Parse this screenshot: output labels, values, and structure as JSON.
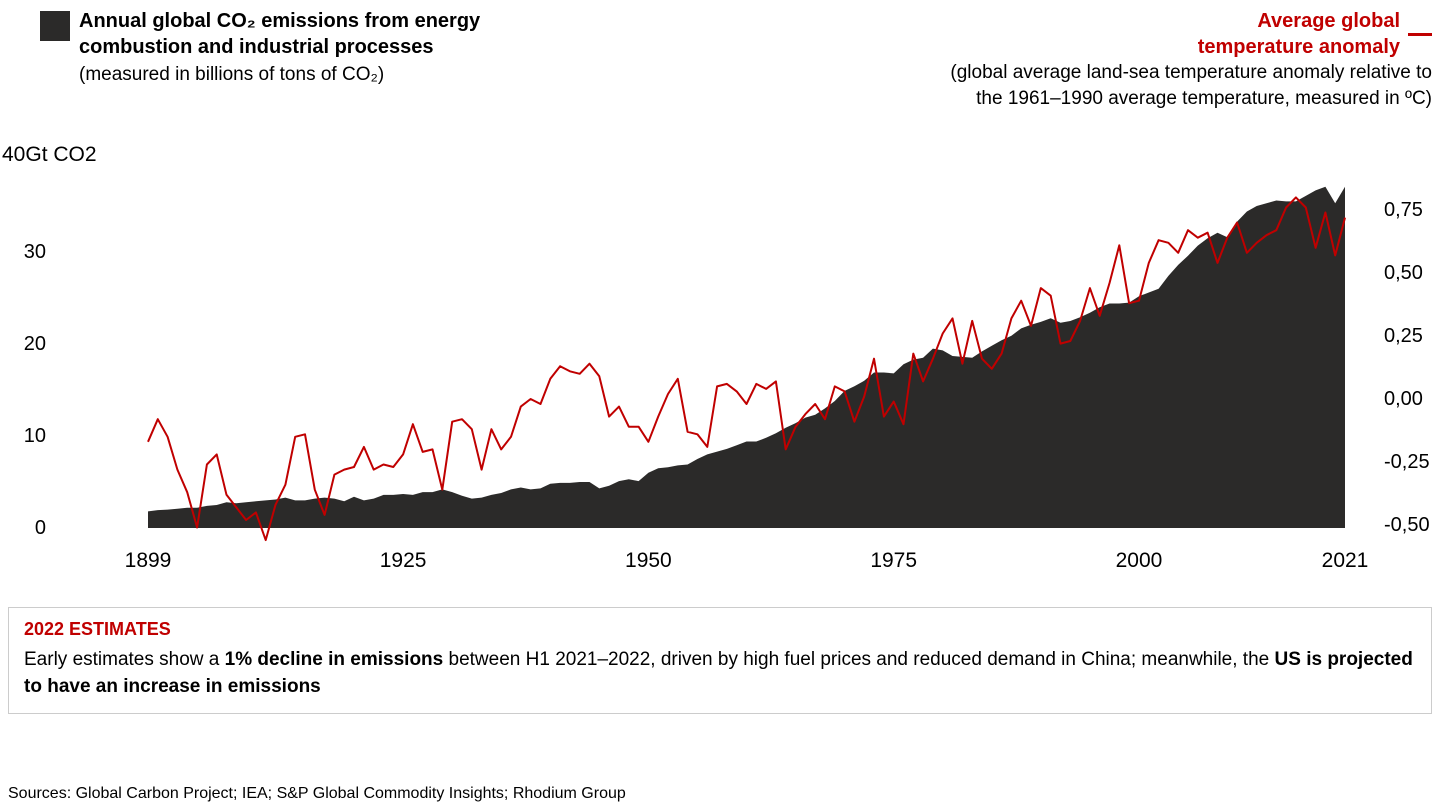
{
  "colors": {
    "emissions": "#2b2a29",
    "temperature": "#c00000",
    "callout_border": "#cccccc",
    "background": "#ffffff"
  },
  "legend_left": {
    "title_line1": "Annual global CO₂ emissions from energy",
    "title_line2": "combustion and industrial processes",
    "subtitle": "(measured in billions of tons of CO₂)"
  },
  "legend_right": {
    "title_line1": "Average global",
    "title_line2": "temperature anomaly",
    "subtitle_line1": "(global average land-sea temperature anomaly relative to",
    "subtitle_line2": "the 1961–1990 average temperature, measured in ºC)"
  },
  "chart_data": {
    "type": "area+line",
    "title": "Annual global CO₂ emissions from energy combustion and industrial processes vs. average global temperature anomaly, 1899–2021",
    "x": [
      1899,
      1900,
      1901,
      1902,
      1903,
      1904,
      1905,
      1906,
      1907,
      1908,
      1909,
      1910,
      1911,
      1912,
      1913,
      1914,
      1915,
      1916,
      1917,
      1918,
      1919,
      1920,
      1921,
      1922,
      1923,
      1924,
      1925,
      1926,
      1927,
      1928,
      1929,
      1930,
      1931,
      1932,
      1933,
      1934,
      1935,
      1936,
      1937,
      1938,
      1939,
      1940,
      1941,
      1942,
      1943,
      1944,
      1945,
      1946,
      1947,
      1948,
      1949,
      1950,
      1951,
      1952,
      1953,
      1954,
      1955,
      1956,
      1957,
      1958,
      1959,
      1960,
      1961,
      1962,
      1963,
      1964,
      1965,
      1966,
      1967,
      1968,
      1969,
      1970,
      1971,
      1972,
      1973,
      1974,
      1975,
      1976,
      1977,
      1978,
      1979,
      1980,
      1981,
      1982,
      1983,
      1984,
      1985,
      1986,
      1987,
      1988,
      1989,
      1990,
      1991,
      1992,
      1993,
      1994,
      1995,
      1996,
      1997,
      1998,
      1999,
      2000,
      2001,
      2002,
      2003,
      2004,
      2005,
      2006,
      2007,
      2008,
      2009,
      2010,
      2011,
      2012,
      2013,
      2014,
      2015,
      2016,
      2017,
      2018,
      2019,
      2020,
      2021
    ],
    "series": [
      {
        "name": "Annual global CO₂ emissions from energy combustion and industrial processes",
        "type": "area",
        "axis": "left",
        "unit": "Gt CO₂",
        "values": [
          1.8,
          1.95,
          2.0,
          2.1,
          2.2,
          2.2,
          2.4,
          2.5,
          2.8,
          2.7,
          2.8,
          2.9,
          3.0,
          3.1,
          3.3,
          3.0,
          3.0,
          3.2,
          3.3,
          3.2,
          2.9,
          3.4,
          3.0,
          3.2,
          3.6,
          3.6,
          3.7,
          3.6,
          3.9,
          3.9,
          4.2,
          3.9,
          3.5,
          3.2,
          3.3,
          3.6,
          3.8,
          4.2,
          4.4,
          4.2,
          4.3,
          4.8,
          4.9,
          4.9,
          5.0,
          5.0,
          4.3,
          4.6,
          5.1,
          5.3,
          5.1,
          6.0,
          6.5,
          6.6,
          6.8,
          6.9,
          7.5,
          8.0,
          8.3,
          8.6,
          9.0,
          9.4,
          9.4,
          9.8,
          10.3,
          10.9,
          11.4,
          12.0,
          12.3,
          13.0,
          13.8,
          14.9,
          15.4,
          16.0,
          16.9,
          16.9,
          16.8,
          17.8,
          18.3,
          18.5,
          19.5,
          19.3,
          18.7,
          18.6,
          18.5,
          19.2,
          19.8,
          20.4,
          20.9,
          21.7,
          22.1,
          22.4,
          22.8,
          22.3,
          22.5,
          22.9,
          23.4,
          24.0,
          24.4,
          24.4,
          24.5,
          25.2,
          25.6,
          26.0,
          27.4,
          28.6,
          29.6,
          30.7,
          31.5,
          32.1,
          31.6,
          33.3,
          34.4,
          35.0,
          35.3,
          35.6,
          35.5,
          35.5,
          36.1,
          36.7,
          37.1,
          35.3,
          37.1
        ]
      },
      {
        "name": "Average global temperature anomaly",
        "type": "line",
        "axis": "right",
        "unit": "ºC",
        "values": [
          -0.17,
          -0.08,
          -0.15,
          -0.28,
          -0.37,
          -0.51,
          -0.26,
          -0.22,
          -0.38,
          -0.43,
          -0.48,
          -0.45,
          -0.56,
          -0.42,
          -0.34,
          -0.15,
          -0.14,
          -0.36,
          -0.46,
          -0.3,
          -0.28,
          -0.27,
          -0.19,
          -0.28,
          -0.26,
          -0.27,
          -0.22,
          -0.1,
          -0.21,
          -0.2,
          -0.36,
          -0.09,
          -0.08,
          -0.12,
          -0.28,
          -0.12,
          -0.2,
          -0.15,
          -0.03,
          0.0,
          -0.02,
          0.08,
          0.13,
          0.11,
          0.1,
          0.14,
          0.09,
          -0.07,
          -0.03,
          -0.11,
          -0.11,
          -0.17,
          -0.07,
          0.02,
          0.08,
          -0.13,
          -0.14,
          -0.19,
          0.05,
          0.06,
          0.03,
          -0.02,
          0.06,
          0.04,
          0.07,
          -0.2,
          -0.11,
          -0.06,
          -0.02,
          -0.08,
          0.05,
          0.03,
          -0.09,
          0.01,
          0.16,
          -0.07,
          -0.01,
          -0.1,
          0.18,
          0.07,
          0.16,
          0.26,
          0.32,
          0.14,
          0.31,
          0.16,
          0.12,
          0.18,
          0.32,
          0.39,
          0.29,
          0.44,
          0.41,
          0.22,
          0.23,
          0.31,
          0.44,
          0.33,
          0.46,
          0.61,
          0.38,
          0.39,
          0.54,
          0.63,
          0.62,
          0.58,
          0.67,
          0.64,
          0.66,
          0.54,
          0.64,
          0.7,
          0.58,
          0.62,
          0.65,
          0.67,
          0.76,
          0.8,
          0.76,
          0.6,
          0.74,
          0.57,
          0.72
        ]
      }
    ],
    "left_axis": {
      "label": "40Gt CO2",
      "range": [
        0,
        40
      ],
      "ticks": [
        {
          "v": 0,
          "label": "0"
        },
        {
          "v": 10,
          "label": "10"
        },
        {
          "v": 20,
          "label": "20"
        },
        {
          "v": 30,
          "label": "30"
        }
      ]
    },
    "right_axis": {
      "range": [
        -0.5,
        0.75
      ],
      "ticks": [
        {
          "v": -0.5,
          "label": "-0,50"
        },
        {
          "v": -0.25,
          "label": "-0,25"
        },
        {
          "v": 0.0,
          "label": "0,00"
        },
        {
          "v": 0.25,
          "label": "0,25"
        },
        {
          "v": 0.5,
          "label": "0,50"
        },
        {
          "v": 0.75,
          "label": "0,75"
        }
      ]
    },
    "x_axis": {
      "ticks": [
        1899,
        1925,
        1950,
        1975,
        2000,
        2021
      ]
    },
    "grid": false,
    "legend_position": "top"
  },
  "callout": {
    "heading": "2022 ESTIMATES",
    "body_segments": [
      {
        "text": "Early estimates show a ",
        "bold": false
      },
      {
        "text": "1% decline in emissions",
        "bold": true
      },
      {
        "text": " between H1 2021–2022, driven by high fuel prices and reduced demand in China; meanwhile, the ",
        "bold": false
      },
      {
        "text": "US is projected to have an increase in emissions",
        "bold": true
      }
    ]
  },
  "footer": {
    "sources": "Sources: Global Carbon Project; IEA; S&P Global Commodity Insights; Rhodium Group"
  }
}
